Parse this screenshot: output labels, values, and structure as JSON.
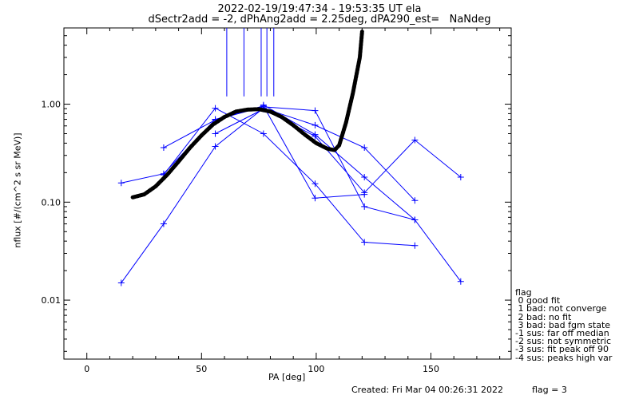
{
  "title_line1": "2022-02-19/19:47:34 - 19:53:35 UT ela",
  "title_line2": "dSectr2add = -2, dPhAng2add = 2.25deg, dPA290_est=   NaNdeg",
  "footer_created": "Created: Fri Mar 04 00:26:31 2022",
  "footer_flag": "flag = 3",
  "legend": {
    "title": "flag",
    "items": [
      " 0 good fit",
      " 1 bad: not converge",
      " 2 bad: no fit",
      " 3 bad: bad fgm state",
      "-1 sus: far off median",
      "-2 sus: not symmetric",
      "-3 sus: fit peak off 90",
      "-4 sus: peaks high var"
    ]
  },
  "colors": {
    "series": "#0000ff",
    "fit": "#000000",
    "axes": "#000000"
  },
  "chart_data": {
    "type": "line",
    "xlabel": "PA [deg]",
    "ylabel": "nflux [#/(cm^2 s sr MeV)]",
    "xlim": [
      -10,
      185
    ],
    "ylim": [
      0.0025,
      6.0
    ],
    "yscale": "log",
    "x_ticks": [
      0,
      50,
      100,
      150
    ],
    "x_tick_labels": [
      "0",
      "50",
      "100",
      "150"
    ],
    "y_ticks": [
      0.01,
      0.1,
      1.0
    ],
    "y_tick_labels": [
      "0.01",
      "0.10",
      "1.00"
    ],
    "vertical_markers": [
      61,
      68.5,
      76,
      78.5,
      81.5
    ],
    "vertical_marker_range": [
      1.2,
      6.0
    ],
    "series": [
      {
        "x": [
          15,
          33.5,
          56,
          77,
          99.5,
          121
        ],
        "y": [
          0.157,
          0.195,
          0.7,
          0.96,
          0.11,
          0.12
        ]
      },
      {
        "x": [
          33.5,
          56,
          77,
          99.5,
          121,
          143
        ],
        "y": [
          0.36,
          0.69,
          0.94,
          0.86,
          0.09,
          0.066
        ]
      },
      {
        "x": [
          33.5,
          56,
          77,
          99.5,
          121,
          143
        ],
        "y": [
          0.19,
          0.91,
          0.5,
          0.154,
          0.039,
          0.036
        ]
      },
      {
        "x": [
          15,
          33.5,
          56,
          77,
          99.5,
          121,
          143
        ],
        "y": [
          0.015,
          0.06,
          0.37,
          0.91,
          0.61,
          0.36,
          0.104
        ]
      },
      {
        "x": [
          56,
          77,
          99.5,
          121,
          143,
          163
        ],
        "y": [
          0.5,
          0.89,
          0.47,
          0.125,
          0.43,
          0.18
        ]
      },
      {
        "x": [
          77,
          99.5,
          121,
          143,
          163
        ],
        "y": [
          0.98,
          0.49,
          0.18,
          0.066,
          0.0155
        ]
      }
    ],
    "fit_curve": {
      "x": [
        20,
        25,
        30,
        35,
        40,
        45,
        50,
        55,
        60,
        65,
        70,
        75,
        80,
        85,
        90,
        95,
        100,
        105,
        108,
        110,
        113,
        116,
        119,
        120
      ],
      "y": [
        0.112,
        0.12,
        0.145,
        0.19,
        0.26,
        0.36,
        0.48,
        0.62,
        0.74,
        0.84,
        0.88,
        0.89,
        0.84,
        0.74,
        0.61,
        0.49,
        0.4,
        0.35,
        0.34,
        0.38,
        0.65,
        1.3,
        3.0,
        5.5
      ]
    }
  }
}
